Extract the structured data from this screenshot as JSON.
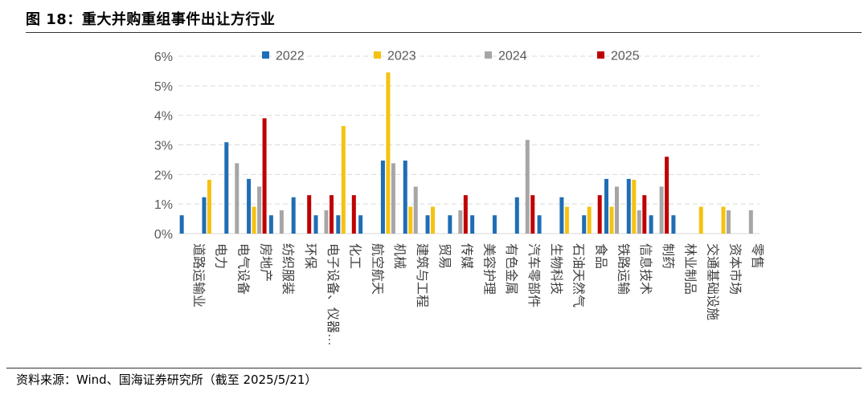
{
  "header": {
    "title": "图 18：重大并购重组事件出让方行业"
  },
  "footer": {
    "source": "资料来源：Wind、国海证券研究所（截至 2025/5/21）"
  },
  "chart_data": {
    "type": "bar",
    "title": "图 18：重大并购重组事件出让方行业",
    "xlabel": "",
    "ylabel": "",
    "ylim": [
      0,
      6
    ],
    "y_ticks": [
      "0%",
      "1%",
      "2%",
      "3%",
      "4%",
      "5%",
      "6%"
    ],
    "y_unit": "%",
    "grid": true,
    "legend_position": "top",
    "categories": [
      "道路运输业",
      "电力",
      "电气设备",
      "房地产",
      "纺织服装",
      "环保",
      "电子设备、仪器…",
      "化工",
      "航空航天",
      "机械",
      "建筑与工程",
      "贸易",
      "传媒",
      "美容护理",
      "有色金属",
      "汽车零部件",
      "生物科技",
      "石油天然气",
      "食品",
      "铁路运输",
      "信息技术",
      "制药",
      "林业制品",
      "交通基础设施",
      "资本市场",
      "零售"
    ],
    "series": [
      {
        "name": "2022",
        "color": "#1f6db5",
        "values": [
          0.62,
          1.23,
          3.09,
          1.85,
          0.62,
          1.23,
          0.62,
          0.62,
          0.62,
          2.47,
          2.47,
          0.62,
          0.62,
          0.62,
          0.62,
          1.23,
          0.62,
          1.23,
          0.62,
          1.85,
          1.85,
          0.62,
          0.62,
          0,
          0,
          0
        ]
      },
      {
        "name": "2023",
        "color": "#f5c211",
        "values": [
          0,
          1.82,
          0,
          0.91,
          0,
          0,
          0,
          3.64,
          0,
          5.45,
          0.91,
          0.91,
          0,
          0,
          0,
          0,
          0,
          0.91,
          0.91,
          0.91,
          1.82,
          0,
          0,
          0.91,
          0.91,
          0
        ]
      },
      {
        "name": "2024",
        "color": "#a6a6a6",
        "values": [
          0,
          0,
          2.38,
          1.59,
          0.79,
          0,
          0.79,
          0,
          0,
          2.38,
          1.59,
          0,
          0.79,
          0,
          0,
          3.17,
          0,
          0,
          0,
          1.59,
          0.79,
          1.59,
          0,
          0,
          0.79,
          0.79
        ]
      },
      {
        "name": "2025",
        "color": "#c00000",
        "values": [
          0,
          0,
          0,
          3.9,
          0,
          1.3,
          1.3,
          1.3,
          0,
          0,
          0,
          0,
          1.3,
          0,
          0,
          1.3,
          0,
          0,
          1.3,
          0,
          1.3,
          2.6,
          0,
          0,
          0,
          0
        ]
      }
    ]
  }
}
